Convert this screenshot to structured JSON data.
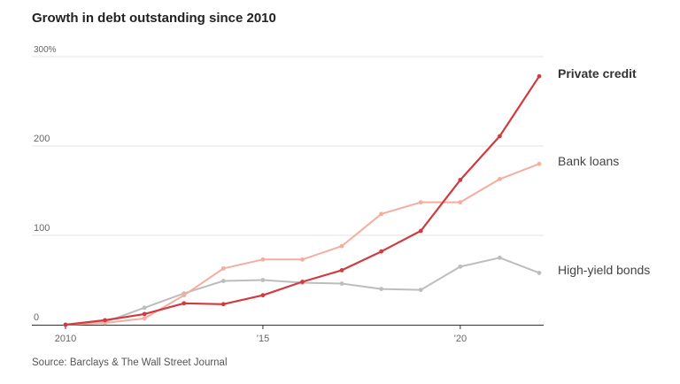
{
  "chart_data": {
    "type": "line",
    "title": "Growth in debt outstanding since 2010",
    "source": "Source: Barclays & The Wall Street Journal",
    "xlabel": "",
    "ylabel": "",
    "x": [
      2010,
      2011,
      2012,
      2013,
      2014,
      2015,
      2016,
      2017,
      2018,
      2019,
      2020,
      2021,
      2022
    ],
    "xlim": [
      2010,
      2022
    ],
    "ylim": [
      0,
      300
    ],
    "grid": true,
    "y_ticks": [
      {
        "value": 300,
        "label": "300%"
      },
      {
        "value": 200,
        "label": "200"
      },
      {
        "value": 100,
        "label": "100"
      },
      {
        "value": 0,
        "label": "0"
      }
    ],
    "x_ticks": [
      {
        "value": 2010,
        "label": "2010"
      },
      {
        "value": 2015,
        "label": "’15"
      },
      {
        "value": 2020,
        "label": "’20"
      }
    ],
    "series": [
      {
        "name": "High-yield bonds",
        "color": "#bdbdbd",
        "values": [
          0,
          3,
          19,
          35,
          49,
          50,
          47,
          46,
          40,
          39,
          65,
          75,
          58
        ]
      },
      {
        "name": "Bank loans",
        "color": "#f4ad9f",
        "values": [
          0,
          2,
          7,
          33,
          63,
          73,
          73,
          88,
          124,
          137,
          137,
          163,
          180
        ]
      },
      {
        "name": "Private credit",
        "color": "#d13b40",
        "values": [
          0,
          5,
          12,
          24,
          23,
          33,
          48,
          61,
          82,
          105,
          162,
          211,
          278
        ]
      }
    ],
    "legend": [
      {
        "label": "Private credit",
        "color": "#333333",
        "bold": true
      },
      {
        "label": "Bank loans",
        "color": "#444444",
        "bold": false
      },
      {
        "label": "High-yield bonds",
        "color": "#444444",
        "bold": false
      }
    ]
  }
}
